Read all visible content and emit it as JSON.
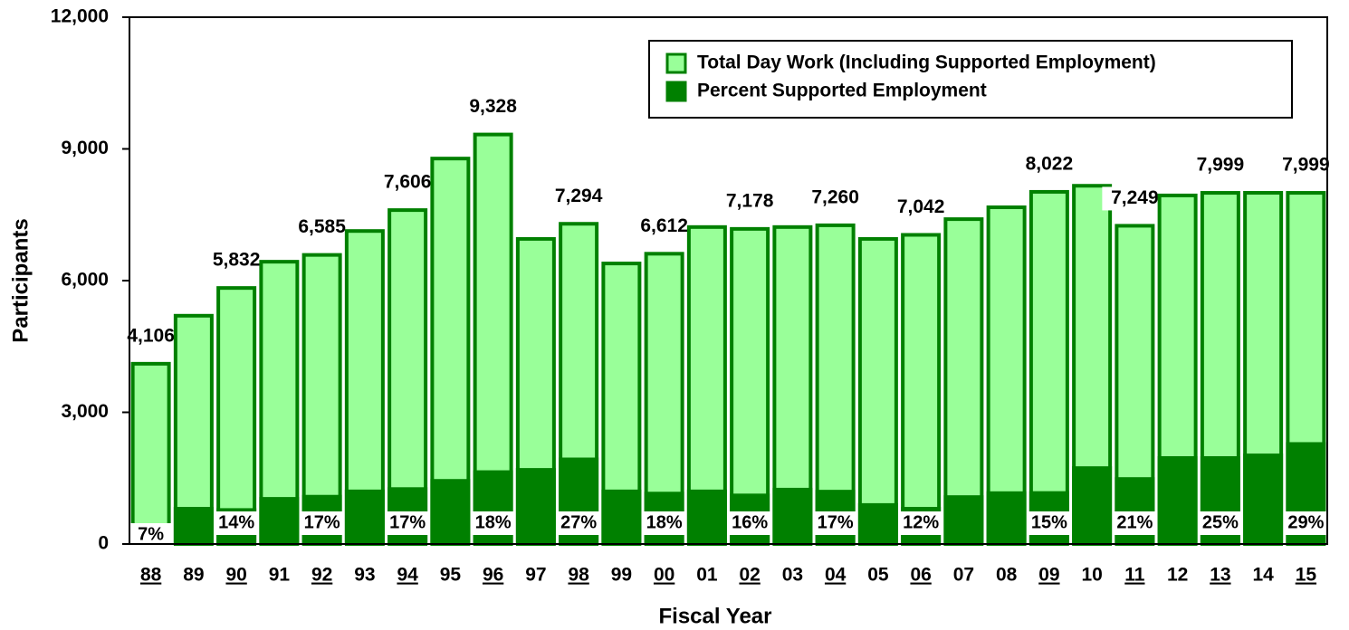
{
  "chart_data": {
    "type": "bar",
    "x_label": "Fiscal Year",
    "y_label": "Participants",
    "categories": [
      "88",
      "89",
      "90",
      "91",
      "92",
      "93",
      "94",
      "95",
      "96",
      "97",
      "98",
      "99",
      "00",
      "01",
      "02",
      "03",
      "04",
      "05",
      "06",
      "07",
      "08",
      "09",
      "10",
      "11",
      "12",
      "13",
      "14",
      "15"
    ],
    "series": [
      {
        "name": "Total Day Work (Including Supported Employment)",
        "color": "#99ff99",
        "edge_color": "#008000",
        "values": [
          4106,
          5200,
          5832,
          6430,
          6585,
          7130,
          7606,
          8780,
          9328,
          6950,
          7294,
          6390,
          6612,
          7220,
          7178,
          7220,
          7260,
          6950,
          7042,
          7400,
          7670,
          8022,
          8160,
          7249,
          7940,
          7999,
          8000,
          7999
        ],
        "value_labels": [
          "4,106",
          null,
          "5,832",
          null,
          "6,585",
          null,
          "7,606",
          null,
          "9,328",
          null,
          "7,294",
          null,
          "6,612",
          null,
          "7,178",
          null,
          "7,260",
          null,
          "7,042",
          null,
          null,
          "8,022",
          null,
          "7,249",
          null,
          "7,999",
          null,
          "7,999"
        ]
      },
      {
        "name": "Percent Supported Employment",
        "color": "#008000",
        "values": [
          287,
          845,
          816,
          1070,
          1119,
          1240,
          1293,
          1480,
          1679,
          1730,
          1969,
          1240,
          1190,
          1240,
          1148,
          1280,
          1234,
          930,
          845,
          1110,
          1200,
          1203,
          1770,
          1522,
          2000,
          2000,
          2060,
          2320
        ]
      }
    ],
    "percent_labels": [
      "7%",
      null,
      "14%",
      null,
      "17%",
      null,
      "17%",
      null,
      "18%",
      null,
      "27%",
      null,
      "18%",
      null,
      "16%",
      null,
      "17%",
      null,
      "12%",
      null,
      null,
      "15%",
      null,
      "21%",
      null,
      "25%",
      null,
      "29%"
    ],
    "ylim": [
      0,
      12000
    ],
    "yticks": [
      0,
      {
        "value": 3000,
        "label": "3,000"
      },
      {
        "value": 6000,
        "label": "6,000"
      },
      {
        "value": 9000,
        "label": "9,000"
      },
      {
        "value": 12000,
        "label": "12,000"
      }
    ],
    "grid": false,
    "legend": "upper right"
  }
}
